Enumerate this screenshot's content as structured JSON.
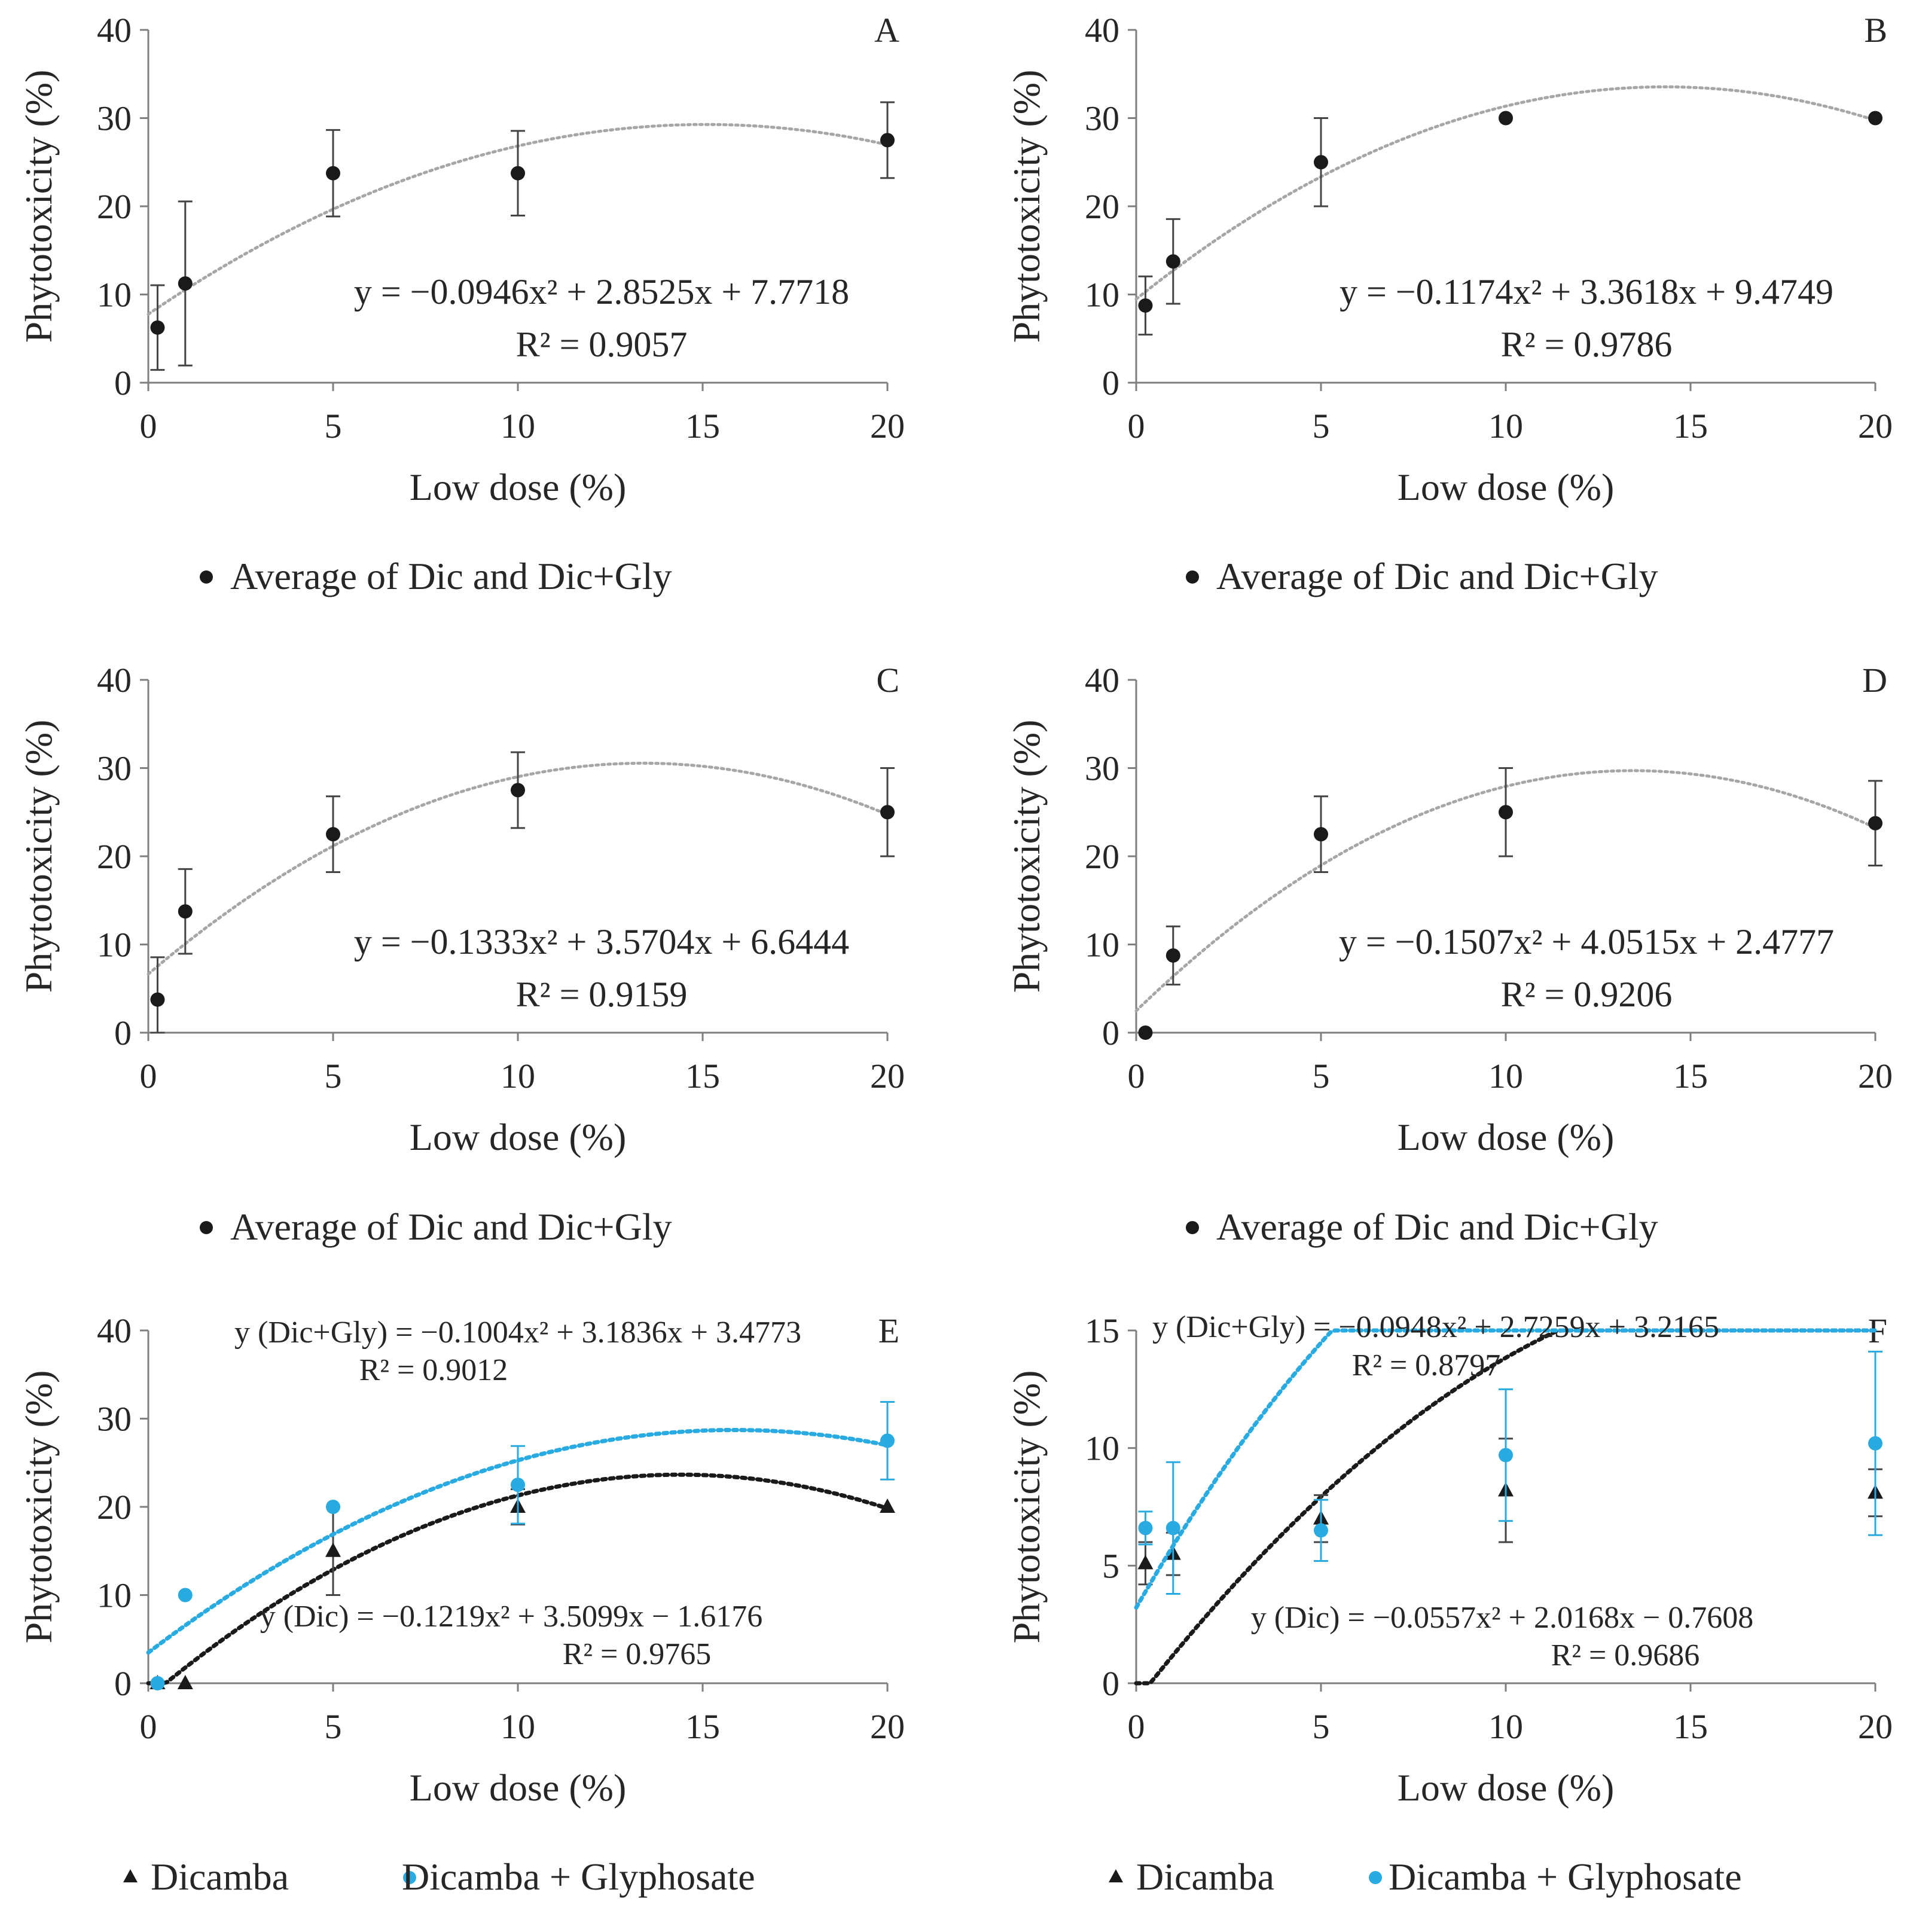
{
  "chart_data": [
    {
      "panel": "A",
      "type": "scatter",
      "xlabel": "Low dose (%)",
      "ylabel": "Phytotoxicity (%)",
      "xlim": [
        0,
        20
      ],
      "ylim": [
        0,
        40
      ],
      "xticks": [
        "0",
        "5",
        "10",
        "15",
        "20"
      ],
      "yticks": [
        "0",
        "10",
        "20",
        "30",
        "40"
      ],
      "series": [
        {
          "name": "Average of Dic and Dic+Gly",
          "color": "#1a1a1a",
          "marker": "circle",
          "trend_color": "#a6a6a6",
          "x": [
            0.25,
            1,
            5,
            10,
            20
          ],
          "y": [
            6.25,
            11.25,
            23.75,
            23.75,
            27.5
          ],
          "err": [
            4.8,
            9.3,
            4.9,
            4.8,
            4.3
          ],
          "trend": [
            -0.0946,
            2.8525,
            7.7718
          ],
          "equation": "y = −0.0946x² + 2.8525x + 7.7718",
          "r2": "R² = 0.9057"
        }
      ]
    },
    {
      "panel": "B",
      "type": "scatter",
      "xlabel": "Low dose (%)",
      "ylabel": "Phytotoxicity (%)",
      "xlim": [
        0,
        20
      ],
      "ylim": [
        0,
        40
      ],
      "xticks": [
        "0",
        "5",
        "10",
        "15",
        "20"
      ],
      "yticks": [
        "0",
        "10",
        "20",
        "30",
        "40"
      ],
      "series": [
        {
          "name": "Average of Dic and Dic+Gly",
          "color": "#1a1a1a",
          "marker": "circle",
          "trend_color": "#a6a6a6",
          "x": [
            0.25,
            1,
            5,
            10,
            20
          ],
          "y": [
            8.75,
            13.75,
            25,
            30,
            30
          ],
          "err": [
            3.3,
            4.8,
            5,
            0,
            0
          ],
          "trend": [
            -0.1174,
            3.3618,
            9.4749
          ],
          "equation": "y = −0.1174x² + 3.3618x + 9.4749",
          "r2": "R² = 0.9786"
        }
      ]
    },
    {
      "panel": "C",
      "type": "scatter",
      "xlabel": "Low dose (%)",
      "ylabel": "Phytotoxicity (%)",
      "xlim": [
        0,
        20
      ],
      "ylim": [
        0,
        40
      ],
      "xticks": [
        "0",
        "5",
        "10",
        "15",
        "20"
      ],
      "yticks": [
        "0",
        "10",
        "20",
        "30",
        "40"
      ],
      "series": [
        {
          "name": "Average of Dic and Dic+Gly",
          "color": "#1a1a1a",
          "marker": "circle",
          "trend_color": "#a6a6a6",
          "x": [
            0.25,
            1,
            5,
            10,
            20
          ],
          "y": [
            3.75,
            13.75,
            22.5,
            27.5,
            25
          ],
          "err": [
            4.8,
            4.8,
            4.3,
            4.3,
            5
          ],
          "trend": [
            -0.1333,
            3.5704,
            6.6444
          ],
          "equation": "y = −0.1333x² + 3.5704x + 6.6444",
          "r2": "R² = 0.9159"
        }
      ]
    },
    {
      "panel": "D",
      "type": "scatter",
      "xlabel": "Low dose (%)",
      "ylabel": "Phytotoxicity (%)",
      "xlim": [
        0,
        20
      ],
      "ylim": [
        0,
        40
      ],
      "xticks": [
        "0",
        "5",
        "10",
        "15",
        "20"
      ],
      "yticks": [
        "0",
        "10",
        "20",
        "30",
        "40"
      ],
      "series": [
        {
          "name": "Average of Dic and Dic+Gly",
          "color": "#1a1a1a",
          "marker": "circle",
          "trend_color": "#a6a6a6",
          "x": [
            0.25,
            1,
            5,
            10,
            20
          ],
          "y": [
            0,
            8.75,
            22.5,
            25,
            23.75
          ],
          "err": [
            0,
            3.3,
            4.3,
            5,
            4.8
          ],
          "trend": [
            -0.1507,
            4.0515,
            2.4777
          ],
          "equation": "y = −0.1507x² + 4.0515x + 2.4777",
          "r2": "R² = 0.9206"
        }
      ]
    },
    {
      "panel": "E",
      "type": "scatter",
      "xlabel": "Low dose (%)",
      "ylabel": "Phytotoxicity (%)",
      "xlim": [
        0,
        20
      ],
      "ylim": [
        0,
        40
      ],
      "xticks": [
        "0",
        "5",
        "10",
        "15",
        "20"
      ],
      "yticks": [
        "0",
        "10",
        "20",
        "30",
        "40"
      ],
      "series": [
        {
          "name": "Dicamba",
          "color": "#1a1a1a",
          "marker": "triangle",
          "trend_color": "#1a1a1a",
          "x": [
            0.25,
            1,
            5,
            10,
            20
          ],
          "y": [
            0,
            0,
            15,
            20,
            20
          ],
          "err": [
            0,
            0,
            5,
            2,
            0
          ],
          "trend": [
            -0.1219,
            3.5099,
            -1.6176
          ],
          "equation": "y (Dic) = −0.1219x² + 3.5099x − 1.6176",
          "r2": "R² = 0.9765"
        },
        {
          "name": "Dicamba + Glyphosate",
          "color": "#29abe2",
          "marker": "circle",
          "trend_color": "#29abe2",
          "x": [
            0.25,
            1,
            5,
            10,
            20
          ],
          "y": [
            0,
            10,
            20,
            22.5,
            27.5
          ],
          "err": [
            0,
            0,
            0,
            4.4,
            4.4
          ],
          "trend": [
            -0.1004,
            3.1836,
            3.4773
          ],
          "equation": "y (Dic+Gly) = −0.1004x² + 3.1836x + 3.4773",
          "r2": "R² = 0.9012"
        }
      ]
    },
    {
      "panel": "F",
      "type": "scatter",
      "xlabel": "Low dose (%)",
      "ylabel": "Phytotoxicity (%)",
      "xlim": [
        0,
        20
      ],
      "ylim": [
        0,
        15
      ],
      "xticks": [
        "0",
        "5",
        "10",
        "15",
        "20"
      ],
      "yticks": [
        "0",
        "5",
        "10",
        "15"
      ],
      "series": [
        {
          "name": "Dicamba",
          "color": "#1a1a1a",
          "marker": "triangle",
          "trend_color": "#1a1a1a",
          "x": [
            0.25,
            1,
            5,
            10,
            20
          ],
          "y": [
            5.1,
            5.5,
            7,
            8.2,
            8.1
          ],
          "err": [
            0.9,
            0.9,
            1,
            2.2,
            1
          ],
          "trend": [
            -0.0557,
            2.0168,
            -0.7608
          ],
          "equation": "y (Dic) = −0.0557x² + 2.0168x − 0.7608",
          "r2": "R² = 0.9686"
        },
        {
          "name": "Dicamba + Glyphosate",
          "color": "#29abe2",
          "marker": "circle",
          "trend_color": "#29abe2",
          "x": [
            0.25,
            1,
            5,
            10,
            20
          ],
          "y": [
            6.6,
            6.6,
            6.5,
            9.7,
            10.2
          ],
          "err": [
            0.7,
            2.8,
            1.3,
            2.8,
            3.9
          ],
          "trend": [
            -0.0948,
            2.7259,
            3.2165
          ],
          "equation": "y (Dic+Gly) = −0.0948x² + 2.7259x + 3.2165",
          "r2": "R² = 0.8797"
        }
      ]
    }
  ]
}
